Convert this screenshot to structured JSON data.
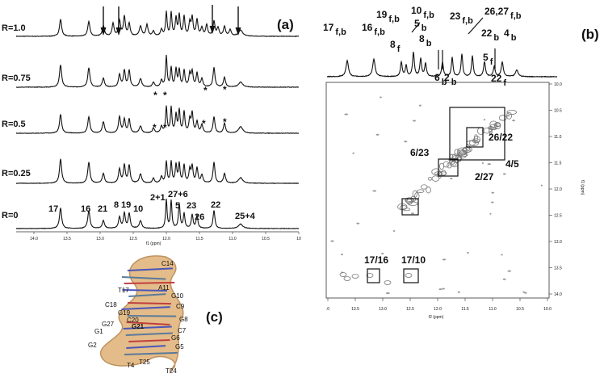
{
  "panel_a": {
    "label": "(a)",
    "traces": [
      "R=1.0",
      "R=0.75",
      "R=0.5",
      "R=0.25",
      "R=0"
    ],
    "peak_labels": [
      "17",
      "16",
      "21",
      "8",
      "19",
      "10",
      "2+1",
      "27+6",
      "5",
      "23",
      "26",
      "22",
      "25+4"
    ],
    "asterisk": "*",
    "axis_ticks": [
      "14.0",
      "13.5",
      "13.0",
      "12.5",
      "12.0",
      "11.5",
      "11.0",
      "10.5",
      "10"
    ],
    "axis_label": "f1 (ppm)"
  },
  "panel_b": {
    "label": "(b)",
    "peak_labels": [
      {
        "number": "17",
        "sub": "f,b"
      },
      {
        "number": "16",
        "sub": "f,b"
      },
      {
        "number": "19",
        "sub": "f,b"
      },
      {
        "number": "8",
        "sub": "f"
      },
      {
        "number": "10",
        "sub": "f,b"
      },
      {
        "number": "5",
        "sub": "b"
      },
      {
        "number": "8",
        "sub": "b"
      },
      {
        "number": "23",
        "sub": "f,b"
      },
      {
        "number": "26,27",
        "sub": "f,b"
      },
      {
        "number": "22",
        "sub": "b"
      },
      {
        "number": "4",
        "sub": "b"
      },
      {
        "number": "6",
        "sub": "b"
      },
      {
        "number": "2",
        "sub": "b"
      },
      {
        "number": "5",
        "sub": "f"
      },
      {
        "number": "22",
        "sub": "f"
      }
    ],
    "cross_peaks": [
      "6/23",
      "26/22",
      "4/5",
      "2/27",
      "17/16",
      "17/10"
    ],
    "f1_ticks": [
      "10.0",
      "10.5",
      "11.0",
      "11.5",
      "12.0",
      "12.5",
      "13.0",
      "13.5",
      "14.0"
    ],
    "f1_label": "f1 (ppm)",
    "f2_ticks": [
      ".0",
      "13.5",
      "13.0",
      "12.5",
      "12.0",
      "11.5",
      "11.0",
      "10.5",
      "10.0"
    ],
    "f2_label": "f2 (ppm)"
  },
  "panel_c": {
    "label": "(c)",
    "residues": [
      "C14",
      "A11",
      "T17",
      "G10",
      "C18",
      "C9",
      "G19",
      "C20",
      "G21",
      "G8",
      "G27",
      "C7",
      "G1",
      "G6",
      "G2",
      "G5",
      "T4",
      "T25",
      "T24"
    ]
  }
}
